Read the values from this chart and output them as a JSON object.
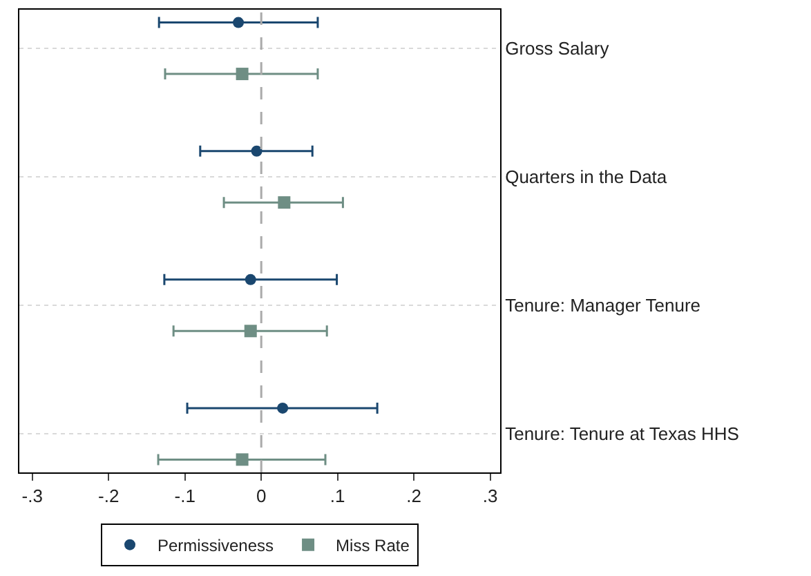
{
  "chart_data": {
    "type": "scatter",
    "orientation": "horizontal",
    "categories": [
      "Gross Salary",
      "Quarters in the Data",
      "Tenure: Manager Tenure",
      "Tenure: Tenure at Texas HHS"
    ],
    "series": [
      {
        "name": "Permissiveness",
        "color": "#1a476f",
        "marker": "circle",
        "values": [
          -0.03,
          -0.006,
          -0.014,
          0.028
        ],
        "errors": [
          [
            -0.134,
            0.074
          ],
          [
            -0.08,
            0.067
          ],
          [
            -0.127,
            0.099
          ],
          [
            -0.097,
            0.152
          ]
        ]
      },
      {
        "name": "Miss Rate",
        "color": "#6e8e84",
        "marker": "square",
        "values": [
          -0.025,
          0.03,
          -0.014,
          -0.025
        ],
        "errors": [
          [
            -0.126,
            0.074
          ],
          [
            -0.049,
            0.107
          ],
          [
            -0.115,
            0.086
          ],
          [
            -0.135,
            0.084
          ]
        ]
      }
    ],
    "xlim": [
      -0.317,
      0.313
    ],
    "xticks": [
      {
        "value": -0.3,
        "label": "-.3"
      },
      {
        "value": -0.2,
        "label": "-.2"
      },
      {
        "value": -0.1,
        "label": "-.1"
      },
      0,
      {
        "value": 0.1,
        "label": ".1"
      },
      {
        "value": 0.2,
        "label": ".2"
      },
      {
        "value": 0.3,
        "label": ".3"
      }
    ],
    "ref_lines": [
      {
        "axis": "x",
        "value": 0,
        "color": "#aaaaaa",
        "line_style": "dashed"
      }
    ],
    "grid": "y",
    "legend": "bottom"
  }
}
